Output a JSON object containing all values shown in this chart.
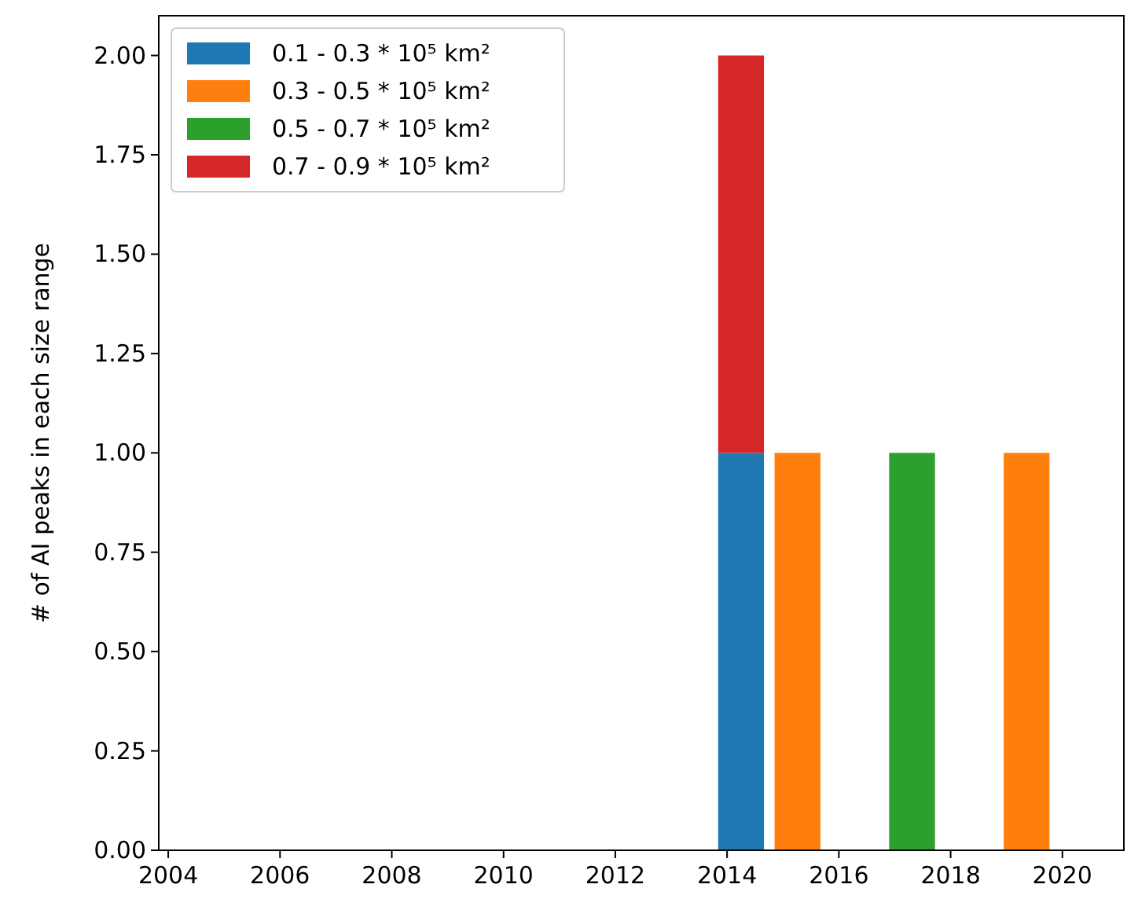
{
  "chart_data": {
    "type": "bar",
    "stacked": true,
    "ylabel": "# of AI peaks in each size range",
    "x": [
      2014.25,
      2015.26,
      2017.31,
      2019.36
    ],
    "series": [
      {
        "name": "0.1 - 0.3 * 10⁵ km²",
        "color": "#1f77b4",
        "values": [
          1,
          null,
          null,
          null
        ]
      },
      {
        "name": "0.3 - 0.5 * 10⁵ km²",
        "color": "#ff7f0e",
        "values": [
          null,
          1,
          null,
          1
        ]
      },
      {
        "name": "0.5 - 0.7 * 10⁵ km²",
        "color": "#2ca02c",
        "values": [
          null,
          null,
          1,
          null
        ]
      },
      {
        "name": "0.7 - 0.9 * 10⁵ km²",
        "color": "#d62728",
        "values": [
          1,
          null,
          null,
          null
        ]
      }
    ],
    "xlim": [
      2003.83,
      2021.1
    ],
    "xticks": [
      2004,
      2006,
      2008,
      2010,
      2012,
      2014,
      2016,
      2018,
      2020
    ],
    "ylim": [
      0,
      2.1
    ],
    "yticks": [
      {
        "value": 0,
        "label": "0.00"
      },
      {
        "value": 0.25,
        "label": "0.25"
      },
      {
        "value": 0.5,
        "label": "0.50"
      },
      {
        "value": 0.75,
        "label": "0.75"
      },
      {
        "value": 1,
        "label": "1.00"
      },
      {
        "value": 1.25,
        "label": "1.25"
      },
      {
        "value": 1.5,
        "label": "1.50"
      },
      {
        "value": 1.75,
        "label": "1.75"
      },
      {
        "value": 2,
        "label": "2.00"
      }
    ],
    "grid": false,
    "legend": "top left"
  }
}
